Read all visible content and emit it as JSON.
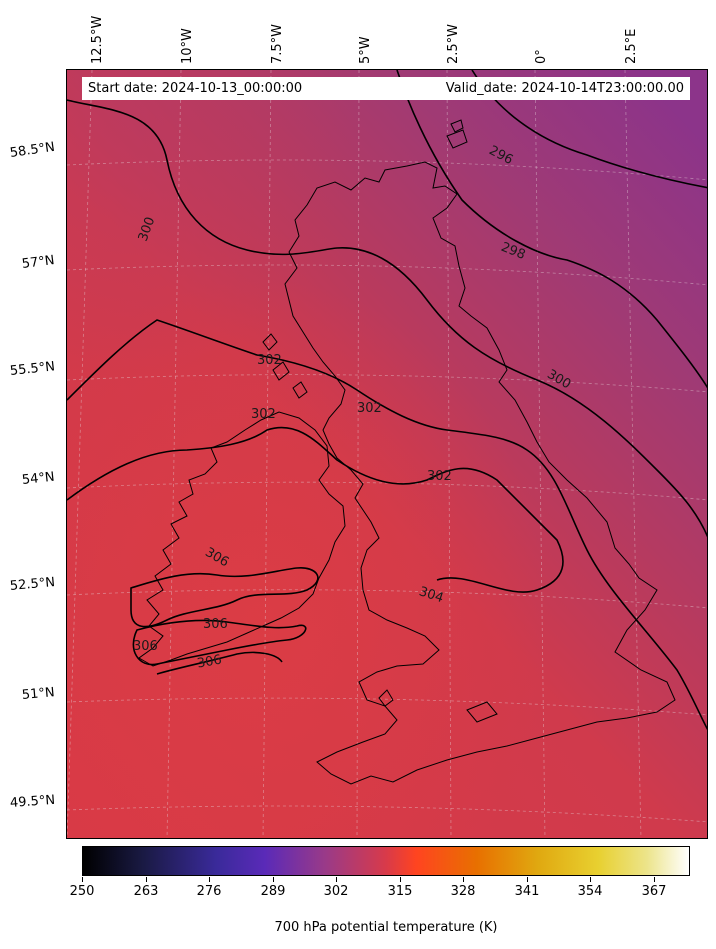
{
  "map": {
    "start_label": "Start date: 2024-10-13_00:00:00",
    "valid_label": "Valid_date: 2024-10-14T23:00:00.00",
    "lon_labels": [
      "12.5°W",
      "10°W",
      "7.5°W",
      "5°W",
      "2.5°W",
      "0°",
      "2.5°E"
    ],
    "lat_labels": [
      "58.5°N",
      "57°N",
      "55.5°N",
      "54°N",
      "52.5°N",
      "51°N",
      "49.5°N"
    ],
    "contour_labels": [
      "296",
      "298",
      "300",
      "300",
      "302",
      "302",
      "302",
      "302",
      "304",
      "306",
      "306",
      "306",
      "306"
    ],
    "colors": {
      "field_warm": "#d63a4a",
      "field_mid": "#b83a5c",
      "field_cool": "#8e3488",
      "contour": "#000000",
      "coastline": "#000000",
      "grid": "#dddddd"
    }
  },
  "colorbar": {
    "title": "700 hPa potential temperature (K)",
    "ticks": [
      "250",
      "263",
      "276",
      "289",
      "302",
      "315",
      "328",
      "341",
      "354",
      "367"
    ],
    "colormap": "CMRmap"
  }
}
